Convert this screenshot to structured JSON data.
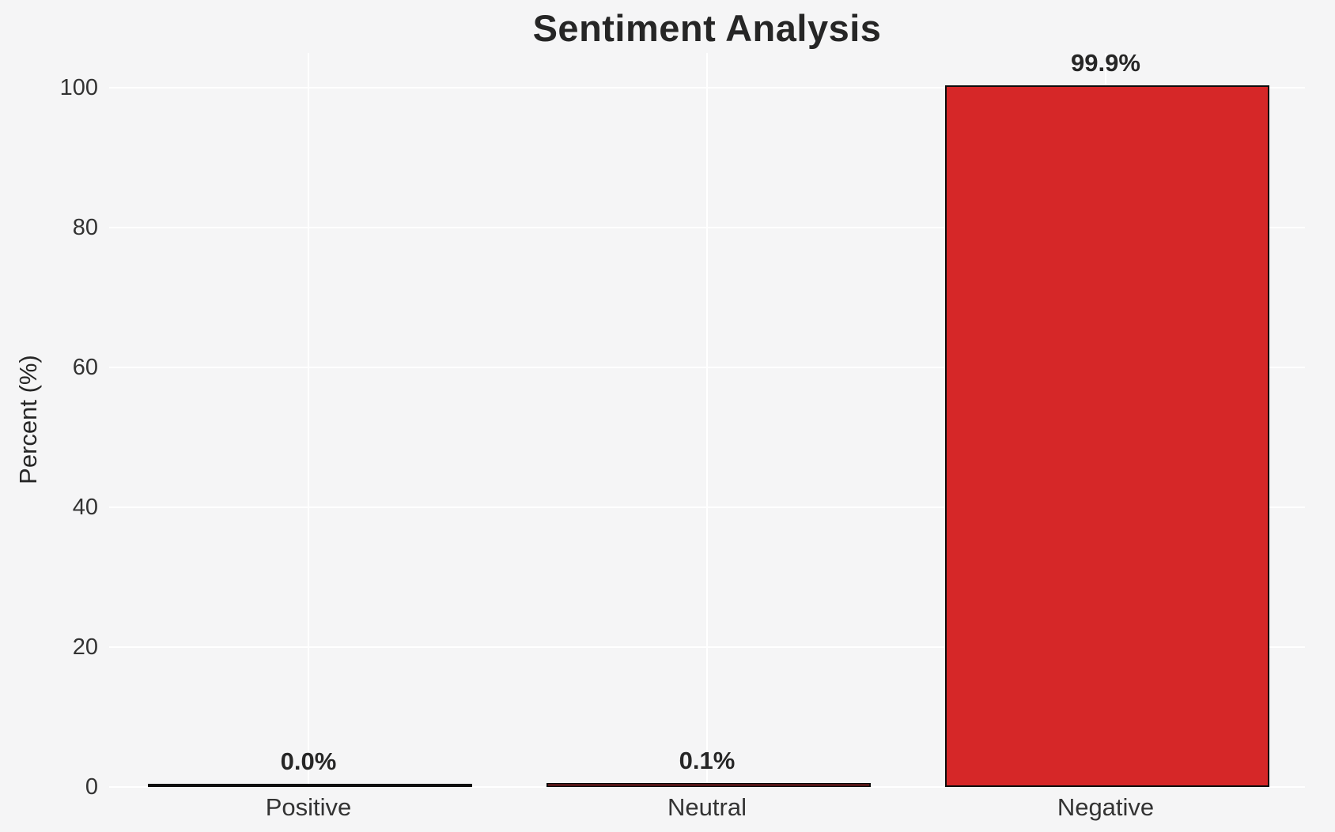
{
  "chart_data": {
    "type": "bar",
    "title": "Sentiment Analysis",
    "xlabel": "",
    "ylabel": "Percent (%)",
    "categories": [
      "Positive",
      "Neutral",
      "Negative"
    ],
    "values": [
      0.0,
      0.1,
      99.9
    ],
    "value_labels": [
      "0.0%",
      "0.1%",
      "99.9%"
    ],
    "yticks": [
      0,
      20,
      40,
      60,
      80,
      100
    ],
    "ylim": [
      0,
      105
    ],
    "grid": "horizontal and vertical white gridlines",
    "legend": "none",
    "colors": {
      "bar_fill": "#d62728",
      "bar_edge": "#0d0d0d",
      "background": "#f5f5f6",
      "gridline": "#ffffff",
      "title_text": "#262626",
      "tick_text": "#333333"
    }
  }
}
